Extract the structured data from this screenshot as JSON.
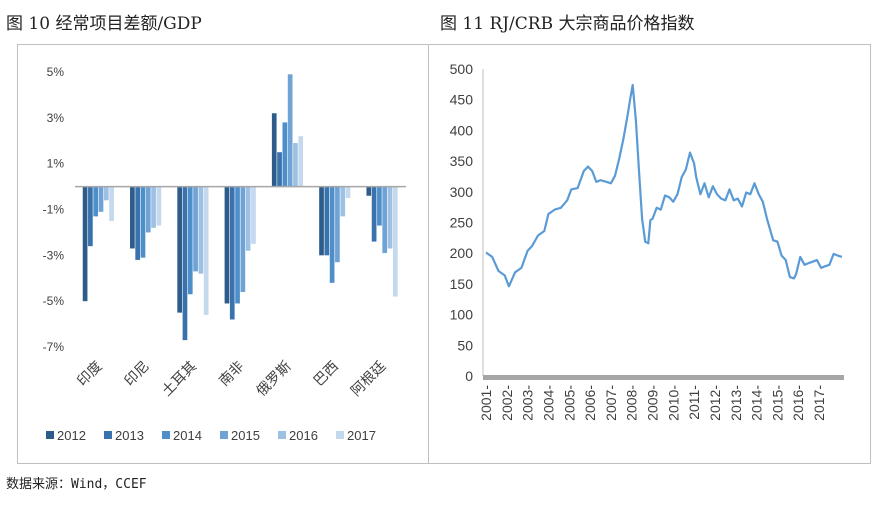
{
  "figure1_title": "图 10 经常项目差额/GDP",
  "figure2_title": "图 11 RJ/CRB 大宗商品价格指数",
  "source": "数据来源：Wind，CCEF",
  "chart_data": [
    {
      "type": "bar",
      "title": "图 10 经常项目差额/GDP",
      "categories": [
        "印度",
        "印尼",
        "土耳其",
        "南非",
        "俄罗斯",
        "巴西",
        "阿根廷"
      ],
      "series": [
        {
          "name": "2012",
          "color": "#2E5C8A",
          "values": [
            -5.0,
            -2.7,
            -5.5,
            -5.1,
            3.2,
            -3.0,
            -0.4
          ]
        },
        {
          "name": "2013",
          "color": "#3A72AE",
          "values": [
            -2.6,
            -3.2,
            -6.7,
            -5.8,
            1.5,
            -3.0,
            -2.4
          ]
        },
        {
          "name": "2014",
          "color": "#4F8FC9",
          "values": [
            -1.3,
            -3.1,
            -4.7,
            -5.1,
            2.8,
            -4.2,
            -1.7
          ]
        },
        {
          "name": "2015",
          "color": "#6FA3D6",
          "values": [
            -1.1,
            -2.0,
            -3.7,
            -4.6,
            4.9,
            -3.3,
            -2.9
          ]
        },
        {
          "name": "2016",
          "color": "#9DC0E3",
          "values": [
            -0.6,
            -1.8,
            -3.8,
            -2.8,
            1.9,
            -1.3,
            -2.7
          ]
        },
        {
          "name": "2017",
          "color": "#C4D9EE",
          "values": [
            -1.5,
            -1.7,
            -5.6,
            -2.5,
            2.2,
            -0.5,
            -4.8
          ]
        }
      ],
      "yticks": [
        "5%",
        "3%",
        "1%",
        "-1%",
        "-3%",
        "-5%",
        "-7%"
      ],
      "ylim": [
        -7,
        5
      ],
      "legend": "bottom"
    },
    {
      "type": "line",
      "title": "图 11 RJ/CRB 大宗商品价格指数",
      "color": "#5B9BD5",
      "x_ticks": [
        "2001-",
        "2002-",
        "2003-",
        "2004-",
        "2005-",
        "2006-",
        "2007-",
        "2008-",
        "2009-",
        "2010-",
        "2011-",
        "2012-",
        "2013-",
        "2014-",
        "2015-",
        "2016-",
        "2017-"
      ],
      "yticks": [
        500,
        450,
        400,
        350,
        300,
        250,
        200,
        150,
        100,
        50,
        0
      ],
      "ylim": [
        0,
        500
      ],
      "xlim": [
        2001.0,
        2018.2
      ],
      "x": [
        2001.0,
        2001.3,
        2001.6,
        2001.9,
        2002.1,
        2002.4,
        2002.7,
        2003.0,
        2003.2,
        2003.5,
        2003.8,
        2004.0,
        2004.3,
        2004.6,
        2004.9,
        2005.1,
        2005.4,
        2005.7,
        2005.9,
        2006.1,
        2006.3,
        2006.5,
        2006.8,
        2007.0,
        2007.2,
        2007.4,
        2007.6,
        2007.8,
        2007.95,
        2008.05,
        2008.2,
        2008.35,
        2008.5,
        2008.65,
        2008.8,
        2008.9,
        2009.0,
        2009.2,
        2009.4,
        2009.6,
        2009.8,
        2010.0,
        2010.2,
        2010.4,
        2010.6,
        2010.8,
        2011.0,
        2011.1,
        2011.3,
        2011.5,
        2011.7,
        2011.9,
        2012.1,
        2012.3,
        2012.5,
        2012.7,
        2012.9,
        2013.1,
        2013.3,
        2013.5,
        2013.7,
        2013.9,
        2014.1,
        2014.3,
        2014.5,
        2014.6,
        2014.8,
        2015.0,
        2015.2,
        2015.4,
        2015.6,
        2015.8,
        2015.9,
        2016.1,
        2016.3,
        2016.5,
        2016.7,
        2016.9,
        2017.1,
        2017.3,
        2017.5,
        2017.7,
        2017.9,
        2018.1
      ],
      "y": [
        205,
        190,
        175,
        160,
        150,
        165,
        180,
        200,
        215,
        225,
        240,
        260,
        275,
        270,
        290,
        300,
        310,
        330,
        345,
        330,
        320,
        315,
        320,
        310,
        330,
        350,
        390,
        420,
        460,
        470,
        420,
        330,
        260,
        215,
        220,
        250,
        260,
        270,
        275,
        290,
        295,
        280,
        300,
        320,
        340,
        360,
        350,
        320,
        300,
        310,
        295,
        305,
        300,
        285,
        290,
        300,
        290,
        285,
        280,
        295,
        300,
        310,
        300,
        280,
        260,
        240,
        225,
        215,
        200,
        185,
        165,
        155,
        170,
        190,
        185,
        180,
        190,
        185,
        180,
        175,
        185,
        195,
        200,
        190
      ]
    }
  ]
}
